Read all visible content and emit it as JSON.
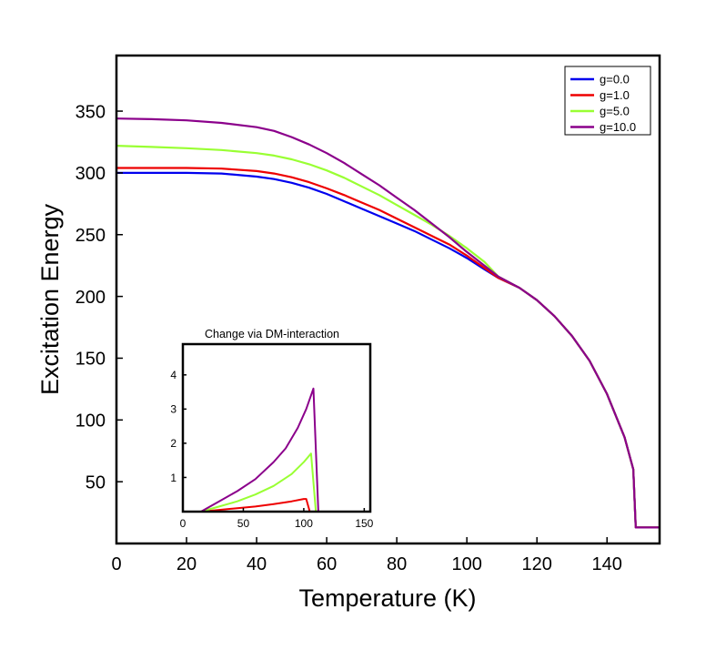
{
  "chart_data": [
    {
      "type": "line",
      "title": "",
      "xlabel": "Temperature (K)",
      "ylabel": "Excitation Energy",
      "xlim": [
        0,
        155
      ],
      "ylim": [
        0,
        395
      ],
      "xticks": [
        0,
        20,
        40,
        60,
        80,
        100,
        120,
        140
      ],
      "yticks": [
        50,
        100,
        150,
        200,
        250,
        300,
        350
      ],
      "legend_position": "top-right",
      "grid": false,
      "series": [
        {
          "name": "g=0.0",
          "color": "#0000ee",
          "x": [
            0,
            10,
            20,
            30,
            40,
            45,
            50,
            55,
            60,
            65,
            70,
            75,
            80,
            85,
            90,
            95,
            100,
            105,
            109,
            115,
            120,
            125,
            130,
            135,
            140,
            145,
            147.5,
            148.2,
            155
          ],
          "y": [
            300,
            300,
            300,
            299.5,
            297,
            295,
            292,
            288,
            283,
            277,
            271,
            265,
            259,
            253,
            246,
            239,
            231,
            222,
            215,
            207,
            197,
            184,
            168,
            148,
            121,
            86,
            60,
            13,
            13
          ]
        },
        {
          "name": "g=1.0",
          "color": "#ee0000",
          "x": [
            0,
            10,
            20,
            30,
            40,
            45,
            50,
            55,
            60,
            65,
            70,
            75,
            80,
            85,
            90,
            95,
            100,
            105,
            109,
            115,
            120,
            125,
            130,
            135,
            140,
            145,
            147.5,
            148.2,
            155
          ],
          "y": [
            304,
            304,
            304,
            303.5,
            301.5,
            299.5,
            296.5,
            292.5,
            287.5,
            282,
            276,
            270,
            263,
            256,
            249,
            242,
            233,
            223,
            215,
            207,
            197,
            184,
            168,
            148,
            121,
            86,
            60,
            13,
            13
          ]
        },
        {
          "name": "g=5.0",
          "color": "#99ff33",
          "x": [
            0,
            10,
            20,
            30,
            40,
            45,
            50,
            55,
            60,
            65,
            70,
            75,
            80,
            85,
            90,
            95,
            100,
            105,
            109,
            115,
            120,
            125,
            130,
            135,
            140,
            145,
            147.5,
            148.2,
            155
          ],
          "y": [
            322,
            321,
            320,
            318.5,
            316,
            314,
            311,
            307,
            302,
            296,
            289,
            282,
            274,
            266,
            258,
            249,
            239,
            228,
            216,
            207,
            197,
            184,
            168,
            148,
            121,
            86,
            60,
            13,
            13
          ]
        },
        {
          "name": "g=10.0",
          "color": "#8b008b",
          "x": [
            0,
            10,
            20,
            30,
            40,
            45,
            50,
            55,
            60,
            65,
            70,
            75,
            80,
            85,
            90,
            95,
            100,
            105,
            109,
            115,
            120,
            125,
            130,
            135,
            140,
            145,
            147.5,
            148.2,
            155
          ],
          "y": [
            344,
            343.5,
            342.5,
            340.5,
            337,
            334,
            329,
            323,
            316,
            308,
            299,
            290,
            280,
            270,
            259,
            248,
            236,
            225,
            216,
            207,
            197,
            184,
            168,
            148,
            121,
            86,
            60,
            13,
            13
          ]
        }
      ]
    },
    {
      "type": "line",
      "title": "Change via DM-interaction",
      "xlabel": "",
      "ylabel": "",
      "xlim": [
        0,
        155
      ],
      "ylim": [
        0,
        4.9
      ],
      "xticks": [
        0,
        50,
        100,
        150
      ],
      "yticks": [
        1,
        2,
        3,
        4
      ],
      "grid": false,
      "series": [
        {
          "name": "g=0.0",
          "color": "#0000ee",
          "x": [
            0,
            155
          ],
          "y": [
            0,
            0
          ]
        },
        {
          "name": "g=1.0",
          "color": "#ee0000",
          "x": [
            0,
            15,
            30,
            45,
            60,
            75,
            90,
            100,
            102,
            105,
            155
          ],
          "y": [
            0,
            0,
            0.05,
            0.1,
            0.15,
            0.22,
            0.3,
            0.37,
            0.37,
            0,
            0
          ]
        },
        {
          "name": "g=5.0",
          "color": "#99ff33",
          "x": [
            0,
            15,
            30,
            45,
            60,
            75,
            90,
            100,
            106,
            110,
            155
          ],
          "y": [
            0,
            0,
            0.15,
            0.3,
            0.5,
            0.75,
            1.1,
            1.45,
            1.7,
            0,
            0
          ]
        },
        {
          "name": "g=10.0",
          "color": "#8b008b",
          "x": [
            0,
            15,
            30,
            45,
            60,
            75,
            85,
            95,
            102,
            108,
            112,
            155
          ],
          "y": [
            0,
            0,
            0.3,
            0.6,
            0.95,
            1.45,
            1.85,
            2.45,
            3.0,
            3.6,
            0,
            0
          ]
        }
      ]
    }
  ]
}
